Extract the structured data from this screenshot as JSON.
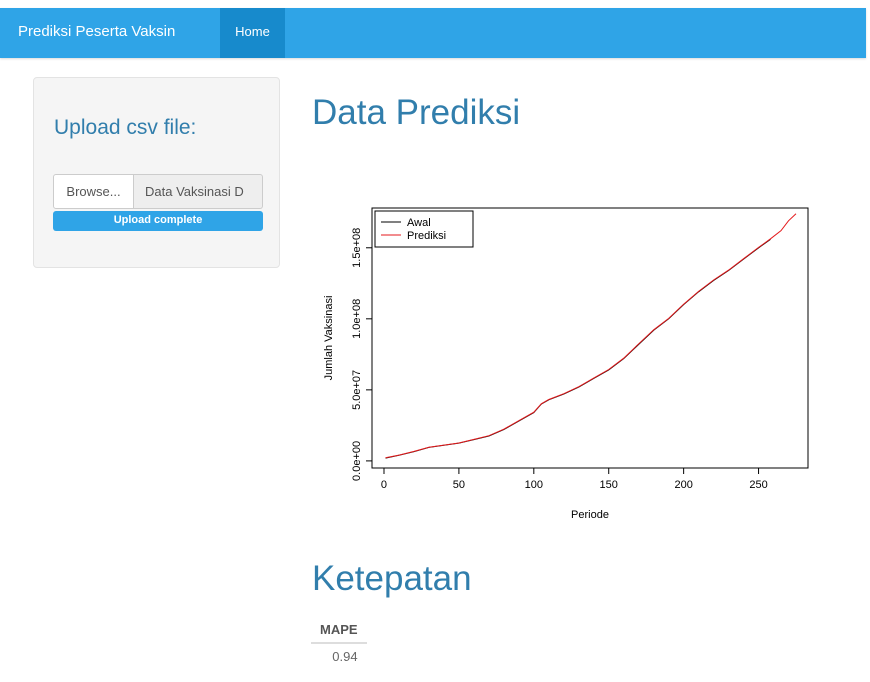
{
  "navbar": {
    "brand": "Prediksi Peserta Vaksin",
    "items": [
      {
        "label": "Home"
      }
    ]
  },
  "sidebar": {
    "title": "Upload csv file:",
    "browse_label": "Browse...",
    "file_name": "Data Vaksinasi D",
    "progress_text": "Upload complete",
    "progress": 1.0
  },
  "main": {
    "prediction_heading": "Data Prediksi",
    "accuracy_heading": "Ketepatan",
    "table": {
      "columns": [
        "MAPE"
      ],
      "rows": [
        [
          "0.94"
        ]
      ]
    }
  },
  "chart_data": {
    "type": "line",
    "xlabel": "Periode",
    "ylabel": "Jumlah Vaksinasi",
    "xlim": [
      -8,
      283
    ],
    "ylim": [
      -5000000,
      178000000
    ],
    "x_ticks": [
      0,
      50,
      100,
      150,
      200,
      250
    ],
    "x_tick_labels": [
      "0",
      "50",
      "100",
      "150",
      "200",
      "250"
    ],
    "y_ticks": [
      0,
      50000000,
      100000000,
      150000000
    ],
    "y_tick_labels": [
      "0.0e+00",
      "5.0e+07",
      "1.0e+08",
      "1.5e+08"
    ],
    "legend_position": "top-left",
    "series": [
      {
        "name": "Awal",
        "color": "#000000",
        "x": [
          1,
          10,
          20,
          30,
          40,
          50,
          60,
          70,
          80,
          90,
          100,
          105,
          110,
          120,
          130,
          140,
          150,
          160,
          170,
          180,
          190,
          200,
          210,
          220,
          230,
          240,
          250,
          258
        ],
        "y": [
          2000000,
          4000000,
          6500000,
          9500000,
          11000000,
          12500000,
          15000000,
          17500000,
          22000000,
          28000000,
          34000000,
          40000000,
          43000000,
          47000000,
          52000000,
          58000000,
          64000000,
          72000000,
          82000000,
          92000000,
          100000000,
          110000000,
          119000000,
          127000000,
          134000000,
          142000000,
          150000000,
          156000000
        ]
      },
      {
        "name": "Prediksi",
        "color": "#e41a1c",
        "x": [
          1,
          10,
          20,
          30,
          40,
          50,
          60,
          70,
          80,
          90,
          100,
          105,
          110,
          120,
          130,
          140,
          150,
          160,
          170,
          180,
          190,
          200,
          210,
          220,
          230,
          240,
          250,
          258,
          265,
          270,
          275
        ],
        "y": [
          2200000,
          4100000,
          6700000,
          9600000,
          11100000,
          12600000,
          15100000,
          17700000,
          22300000,
          28300000,
          34300000,
          40200000,
          43200000,
          47300000,
          52200000,
          58300000,
          64300000,
          72300000,
          82400000,
          92300000,
          100300000,
          110300000,
          119300000,
          127300000,
          134300000,
          142300000,
          150300000,
          156300000,
          162000000,
          169000000,
          174000000
        ]
      }
    ]
  }
}
